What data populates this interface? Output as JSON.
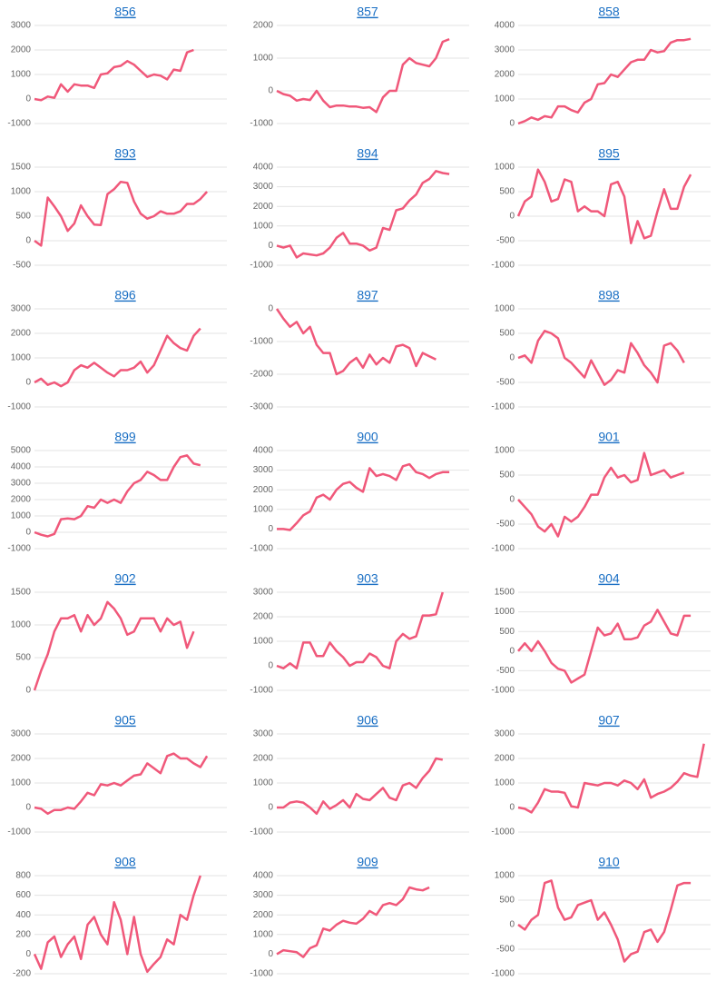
{
  "chart_data": [
    {
      "type": "line",
      "title": "856",
      "color": "#f0587a",
      "ylim": [
        -1000,
        3000
      ],
      "yticks": [
        -1000,
        0,
        1000,
        2000,
        3000
      ],
      "values": [
        0,
        -50,
        100,
        50,
        600,
        300,
        600,
        550,
        550,
        450,
        1000,
        1050,
        1300,
        1350,
        1550,
        1400,
        1150,
        900,
        1000,
        950,
        800,
        1200,
        1150,
        1900,
        2000
      ]
    },
    {
      "type": "line",
      "title": "857",
      "color": "#f0587a",
      "ylim": [
        -1000,
        2000
      ],
      "yticks": [
        -1000,
        0,
        1000,
        2000
      ],
      "values": [
        0,
        -100,
        -150,
        -300,
        -250,
        -280,
        0,
        -300,
        -500,
        -450,
        -450,
        -480,
        -480,
        -520,
        -500,
        -650,
        -200,
        0,
        0,
        800,
        1000,
        850,
        800,
        750,
        1000,
        1500,
        1580
      ]
    },
    {
      "type": "line",
      "title": "858",
      "color": "#f0587a",
      "ylim": [
        0,
        4000
      ],
      "yticks": [
        0,
        1000,
        2000,
        3000,
        4000
      ],
      "values": [
        0,
        100,
        250,
        150,
        300,
        250,
        700,
        700,
        550,
        450,
        850,
        1000,
        1600,
        1650,
        2000,
        1900,
        2200,
        2500,
        2600,
        2600,
        3000,
        2900,
        2950,
        3300,
        3400,
        3400,
        3450
      ]
    },
    {
      "type": "line",
      "title": "893",
      "color": "#f0587a",
      "ylim": [
        -500,
        1500
      ],
      "yticks": [
        -500,
        0,
        500,
        1000,
        1500
      ],
      "values": [
        0,
        -100,
        880,
        700,
        500,
        200,
        350,
        720,
        500,
        330,
        320,
        950,
        1050,
        1200,
        1180,
        800,
        550,
        450,
        500,
        600,
        550,
        550,
        600,
        750,
        750,
        850,
        1000
      ]
    },
    {
      "type": "line",
      "title": "894",
      "color": "#f0587a",
      "ylim": [
        -1000,
        4000
      ],
      "yticks": [
        -1000,
        0,
        1000,
        2000,
        3000,
        4000
      ],
      "values": [
        0,
        -100,
        0,
        -600,
        -400,
        -450,
        -500,
        -400,
        -100,
        400,
        650,
        100,
        100,
        0,
        -250,
        -100,
        900,
        800,
        1800,
        1900,
        2300,
        2600,
        3200,
        3400,
        3800,
        3700,
        3650
      ]
    },
    {
      "type": "line",
      "title": "895",
      "color": "#f0587a",
      "ylim": [
        -1000,
        1000
      ],
      "yticks": [
        -1000,
        -500,
        0,
        500,
        1000
      ],
      "values": [
        0,
        300,
        400,
        950,
        700,
        300,
        350,
        750,
        700,
        100,
        200,
        100,
        100,
        0,
        650,
        700,
        400,
        -550,
        -100,
        -450,
        -400,
        100,
        550,
        150,
        150,
        600,
        850
      ]
    },
    {
      "type": "line",
      "title": "896",
      "color": "#f0587a",
      "ylim": [
        -1000,
        3000
      ],
      "yticks": [
        -1000,
        0,
        1000,
        2000,
        3000
      ],
      "values": [
        0,
        150,
        -100,
        0,
        -150,
        0,
        500,
        700,
        600,
        800,
        600,
        400,
        250,
        500,
        500,
        600,
        850,
        400,
        700,
        1300,
        1900,
        1600,
        1400,
        1300,
        1900,
        2200
      ]
    },
    {
      "type": "line",
      "title": "897",
      "color": "#f0587a",
      "ylim": [
        -3000,
        0
      ],
      "yticks": [
        -3000,
        -2000,
        -1000,
        0
      ],
      "values": [
        0,
        -300,
        -550,
        -400,
        -750,
        -550,
        -1100,
        -1350,
        -1350,
        -2000,
        -1900,
        -1650,
        -1500,
        -1800,
        -1400,
        -1700,
        -1500,
        -1650,
        -1150,
        -1100,
        -1200,
        -1750,
        -1350,
        -1450,
        -1550
      ]
    },
    {
      "type": "line",
      "title": "898",
      "color": "#f0587a",
      "ylim": [
        -1000,
        1000
      ],
      "yticks": [
        -1000,
        -500,
        0,
        500,
        1000
      ],
      "values": [
        0,
        50,
        -100,
        350,
        550,
        500,
        400,
        0,
        -100,
        -250,
        -400,
        -50,
        -300,
        -550,
        -450,
        -250,
        -300,
        300,
        100,
        -150,
        -300,
        -500,
        250,
        300,
        150,
        -100
      ]
    },
    {
      "type": "line",
      "title": "899",
      "color": "#f0587a",
      "ylim": [
        -1000,
        5000
      ],
      "yticks": [
        -1000,
        0,
        1000,
        2000,
        3000,
        4000,
        5000
      ],
      "values": [
        0,
        -150,
        -250,
        -100,
        800,
        850,
        800,
        1000,
        1600,
        1500,
        2000,
        1800,
        2000,
        1800,
        2500,
        3000,
        3200,
        3700,
        3500,
        3200,
        3200,
        4000,
        4600,
        4700,
        4200,
        4100
      ]
    },
    {
      "type": "line",
      "title": "900",
      "color": "#f0587a",
      "ylim": [
        -1000,
        4000
      ],
      "yticks": [
        -1000,
        0,
        1000,
        2000,
        3000,
        4000
      ],
      "values": [
        0,
        0,
        -50,
        300,
        700,
        900,
        1600,
        1750,
        1500,
        2000,
        2300,
        2400,
        2100,
        1900,
        3100,
        2700,
        2800,
        2700,
        2500,
        3200,
        3300,
        2900,
        2800,
        2600,
        2800,
        2900,
        2900
      ]
    },
    {
      "type": "line",
      "title": "901",
      "color": "#f0587a",
      "ylim": [
        -1000,
        1000
      ],
      "yticks": [
        -1000,
        -500,
        0,
        500,
        1000
      ],
      "values": [
        0,
        -150,
        -300,
        -550,
        -650,
        -500,
        -750,
        -350,
        -450,
        -350,
        -150,
        100,
        100,
        450,
        650,
        450,
        500,
        350,
        400,
        950,
        500,
        550,
        600,
        450,
        500,
        550
      ]
    },
    {
      "type": "line",
      "title": "902",
      "color": "#f0587a",
      "ylim": [
        0,
        1500
      ],
      "yticks": [
        0,
        500,
        1000,
        1500
      ],
      "values": [
        0,
        300,
        550,
        900,
        1100,
        1100,
        1150,
        900,
        1150,
        1000,
        1100,
        1350,
        1250,
        1100,
        850,
        900,
        1100,
        1100,
        1100,
        900,
        1100,
        1000,
        1050,
        650,
        900
      ]
    },
    {
      "type": "line",
      "title": "903",
      "color": "#f0587a",
      "ylim": [
        -1000,
        3000
      ],
      "yticks": [
        -1000,
        0,
        1000,
        2000,
        3000
      ],
      "values": [
        0,
        -100,
        100,
        -100,
        950,
        950,
        400,
        400,
        950,
        600,
        350,
        0,
        150,
        150,
        500,
        350,
        0,
        -100,
        1000,
        1300,
        1100,
        1200,
        2050,
        2050,
        2100,
        3000
      ]
    },
    {
      "type": "line",
      "title": "904",
      "color": "#f0587a",
      "ylim": [
        -1000,
        1500
      ],
      "yticks": [
        -1000,
        -500,
        0,
        500,
        1000,
        1500
      ],
      "values": [
        0,
        200,
        0,
        250,
        0,
        -300,
        -450,
        -500,
        -800,
        -700,
        -600,
        0,
        600,
        400,
        450,
        700,
        300,
        300,
        350,
        650,
        750,
        1050,
        750,
        450,
        400,
        900,
        900
      ]
    },
    {
      "type": "line",
      "title": "905",
      "color": "#f0587a",
      "ylim": [
        -1000,
        3000
      ],
      "yticks": [
        -1000,
        0,
        1000,
        2000,
        3000
      ],
      "values": [
        0,
        -50,
        -250,
        -100,
        -100,
        0,
        -50,
        250,
        600,
        500,
        950,
        900,
        1000,
        900,
        1100,
        1300,
        1350,
        1800,
        1600,
        1400,
        2100,
        2200,
        2000,
        2000,
        1800,
        1650,
        2100
      ]
    },
    {
      "type": "line",
      "title": "906",
      "color": "#f0587a",
      "ylim": [
        -1000,
        3000
      ],
      "yticks": [
        -1000,
        0,
        1000,
        2000,
        3000
      ],
      "values": [
        0,
        0,
        200,
        250,
        200,
        0,
        -250,
        250,
        -50,
        100,
        300,
        0,
        550,
        350,
        300,
        550,
        800,
        400,
        300,
        900,
        1000,
        800,
        1200,
        1500,
        2000,
        1950
      ]
    },
    {
      "type": "line",
      "title": "907",
      "color": "#f0587a",
      "ylim": [
        -1000,
        3000
      ],
      "yticks": [
        -1000,
        0,
        1000,
        2000,
        3000
      ],
      "values": [
        0,
        -50,
        -200,
        200,
        750,
        650,
        650,
        600,
        50,
        0,
        1000,
        950,
        900,
        1000,
        1000,
        900,
        1100,
        1000,
        750,
        1150,
        400,
        550,
        650,
        800,
        1050,
        1400,
        1300,
        1250,
        2600
      ]
    },
    {
      "type": "line",
      "title": "908",
      "color": "#f0587a",
      "ylim": [
        -200,
        800
      ],
      "yticks": [
        -200,
        0,
        200,
        400,
        600,
        800
      ],
      "values": [
        0,
        -150,
        120,
        180,
        -30,
        100,
        180,
        -50,
        300,
        380,
        200,
        100,
        530,
        350,
        0,
        380,
        0,
        -180,
        -100,
        -30,
        150,
        100,
        400,
        350,
        600,
        800
      ]
    },
    {
      "type": "line",
      "title": "909",
      "color": "#f0587a",
      "ylim": [
        -1000,
        4000
      ],
      "yticks": [
        -1000,
        0,
        1000,
        2000,
        3000,
        4000
      ],
      "values": [
        0,
        200,
        150,
        100,
        -150,
        300,
        450,
        1300,
        1200,
        1500,
        1700,
        1600,
        1550,
        1800,
        2200,
        2000,
        2500,
        2600,
        2500,
        2800,
        3400,
        3300,
        3250,
        3400
      ]
    },
    {
      "type": "line",
      "title": "910",
      "color": "#f0587a",
      "ylim": [
        -1000,
        1000
      ],
      "yticks": [
        -1000,
        -500,
        0,
        500,
        1000
      ],
      "values": [
        0,
        -100,
        100,
        200,
        850,
        900,
        350,
        100,
        150,
        400,
        450,
        500,
        100,
        250,
        0,
        -300,
        -750,
        -600,
        -550,
        -150,
        -100,
        -350,
        -150,
        300,
        800,
        850,
        850
      ]
    }
  ]
}
